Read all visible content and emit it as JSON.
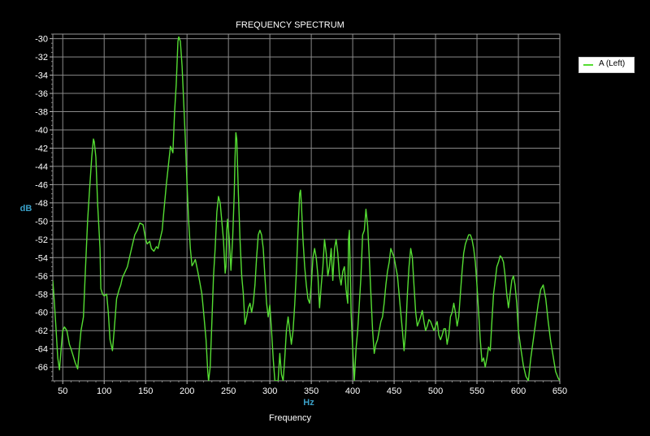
{
  "chart_data": {
    "type": "line",
    "title": "FREQUENCY SPECTRUM",
    "xlabel": "Frequency",
    "x_unit": "Hz",
    "ylabel": "dB",
    "xlim": [
      38,
      650
    ],
    "ylim": [
      -67.5,
      -29.5
    ],
    "x_ticks": [
      50,
      100,
      150,
      200,
      250,
      300,
      350,
      400,
      450,
      500,
      550,
      600,
      650
    ],
    "y_ticks": [
      -30,
      -32,
      -34,
      -36,
      -38,
      -40,
      -42,
      -44,
      -46,
      -48,
      -50,
      -52,
      -54,
      -56,
      -58,
      -60,
      -62,
      -64,
      -66
    ],
    "grid": true,
    "legend_position": "right",
    "series": [
      {
        "name": "A (Left)",
        "color": "#55dd33",
        "points": [
          [
            38,
            -56.5
          ],
          [
            40,
            -59
          ],
          [
            42,
            -62
          ],
          [
            44,
            -65
          ],
          [
            46,
            -66.3
          ],
          [
            48,
            -64
          ],
          [
            50,
            -62
          ],
          [
            52,
            -61.6
          ],
          [
            55,
            -62
          ],
          [
            58,
            -63.5
          ],
          [
            60,
            -64
          ],
          [
            62,
            -64.6
          ],
          [
            65,
            -65.5
          ],
          [
            68,
            -66.2
          ],
          [
            70,
            -64
          ],
          [
            72,
            -62
          ],
          [
            75,
            -60.5
          ],
          [
            77,
            -56
          ],
          [
            80,
            -50
          ],
          [
            82,
            -47
          ],
          [
            85,
            -43
          ],
          [
            87,
            -41
          ],
          [
            88,
            -41.3
          ],
          [
            90,
            -43
          ],
          [
            92,
            -48
          ],
          [
            95,
            -53
          ],
          [
            96,
            -57.4
          ],
          [
            98,
            -58
          ],
          [
            100,
            -58.2
          ],
          [
            103,
            -58
          ],
          [
            105,
            -60
          ],
          [
            107,
            -63
          ],
          [
            110,
            -64.2
          ],
          [
            112,
            -62
          ],
          [
            115,
            -58.5
          ],
          [
            118,
            -57.5
          ],
          [
            120,
            -57
          ],
          [
            122,
            -56.2
          ],
          [
            125,
            -55.6
          ],
          [
            128,
            -55
          ],
          [
            130,
            -54.2
          ],
          [
            133,
            -53
          ],
          [
            137,
            -51.5
          ],
          [
            140,
            -51
          ],
          [
            143,
            -50.2
          ],
          [
            147,
            -50.4
          ],
          [
            150,
            -52
          ],
          [
            152,
            -52.5
          ],
          [
            155,
            -52.2
          ],
          [
            157,
            -53
          ],
          [
            160,
            -53.3
          ],
          [
            163,
            -52.8
          ],
          [
            165,
            -53
          ],
          [
            168,
            -51.8
          ],
          [
            170,
            -51
          ],
          [
            172,
            -49
          ],
          [
            175,
            -46
          ],
          [
            178,
            -43.5
          ],
          [
            180,
            -41.8
          ],
          [
            183,
            -42.5
          ],
          [
            185,
            -38
          ],
          [
            187,
            -35
          ],
          [
            189,
            -30.3
          ],
          [
            190,
            -29.8
          ],
          [
            192,
            -30.3
          ],
          [
            194,
            -33
          ],
          [
            196,
            -37
          ],
          [
            198,
            -41
          ],
          [
            200,
            -46
          ],
          [
            202,
            -50
          ],
          [
            204,
            -53
          ],
          [
            206,
            -54.9
          ],
          [
            208,
            -54.6
          ],
          [
            210,
            -54.2
          ],
          [
            213,
            -55.5
          ],
          [
            215,
            -56.5
          ],
          [
            218,
            -58
          ],
          [
            220,
            -60
          ],
          [
            223,
            -63
          ],
          [
            225,
            -66.5
          ],
          [
            226,
            -67.5
          ],
          [
            228,
            -66
          ],
          [
            230,
            -61
          ],
          [
            232,
            -56
          ],
          [
            234,
            -53
          ],
          [
            236,
            -49
          ],
          [
            238,
            -47.3
          ],
          [
            240,
            -48
          ],
          [
            242,
            -50
          ],
          [
            244,
            -52
          ],
          [
            246,
            -55.7
          ],
          [
            247,
            -55
          ],
          [
            248,
            -51
          ],
          [
            249,
            -49.8
          ],
          [
            251,
            -52
          ],
          [
            253,
            -55.4
          ],
          [
            255,
            -52
          ],
          [
            257,
            -47
          ],
          [
            258,
            -43
          ],
          [
            259,
            -40.3
          ],
          [
            260,
            -41
          ],
          [
            261,
            -44
          ],
          [
            262,
            -47
          ],
          [
            264,
            -52
          ],
          [
            266,
            -56
          ],
          [
            268,
            -58
          ],
          [
            270,
            -61.3
          ],
          [
            272,
            -60.5
          ],
          [
            274,
            -59.5
          ],
          [
            276,
            -59
          ],
          [
            278,
            -60
          ],
          [
            280,
            -59
          ],
          [
            282,
            -57
          ],
          [
            284,
            -54
          ],
          [
            286,
            -51.5
          ],
          [
            288,
            -51
          ],
          [
            290,
            -51.5
          ],
          [
            292,
            -53
          ],
          [
            294,
            -56
          ],
          [
            296,
            -59
          ],
          [
            298,
            -60.5
          ],
          [
            300,
            -59.2
          ],
          [
            302,
            -62
          ],
          [
            304,
            -65
          ],
          [
            306,
            -67.5
          ],
          [
            308,
            -67.5
          ],
          [
            310,
            -67.5
          ],
          [
            312,
            -64.5
          ],
          [
            314,
            -66.8
          ],
          [
            316,
            -67.5
          ],
          [
            318,
            -65
          ],
          [
            320,
            -62
          ],
          [
            322,
            -60.5
          ],
          [
            324,
            -62
          ],
          [
            326,
            -63.5
          ],
          [
            328,
            -62
          ],
          [
            330,
            -59.2
          ],
          [
            332,
            -55.5
          ],
          [
            334,
            -51
          ],
          [
            336,
            -47
          ],
          [
            337,
            -46.6
          ],
          [
            338,
            -48
          ],
          [
            340,
            -52
          ],
          [
            342,
            -55
          ],
          [
            344,
            -57
          ],
          [
            346,
            -58.5
          ],
          [
            348,
            -59
          ],
          [
            350,
            -57
          ],
          [
            352,
            -54
          ],
          [
            354,
            -53
          ],
          [
            356,
            -54
          ],
          [
            358,
            -56
          ],
          [
            360,
            -59.5
          ],
          [
            362,
            -57
          ],
          [
            364,
            -55
          ],
          [
            366,
            -52
          ],
          [
            368,
            -53.5
          ],
          [
            370,
            -56
          ],
          [
            372,
            -55
          ],
          [
            374,
            -53
          ],
          [
            376,
            -56.5
          ],
          [
            378,
            -53
          ],
          [
            380,
            -52
          ],
          [
            382,
            -53.5
          ],
          [
            384,
            -56
          ],
          [
            386,
            -57
          ],
          [
            388,
            -55.5
          ],
          [
            390,
            -55
          ],
          [
            392,
            -57.5
          ],
          [
            394,
            -59
          ],
          [
            395,
            -52
          ],
          [
            396,
            -51
          ],
          [
            397,
            -55
          ],
          [
            398,
            -60
          ],
          [
            400,
            -64
          ],
          [
            402,
            -67.5
          ],
          [
            404,
            -64
          ],
          [
            406,
            -62
          ],
          [
            408,
            -59
          ],
          [
            410,
            -56
          ],
          [
            412,
            -51.5
          ],
          [
            414,
            -51
          ],
          [
            416,
            -48.7
          ],
          [
            418,
            -50.5
          ],
          [
            420,
            -54
          ],
          [
            422,
            -58
          ],
          [
            424,
            -62
          ],
          [
            426,
            -64.5
          ],
          [
            428,
            -63.5
          ],
          [
            430,
            -63
          ],
          [
            432,
            -62
          ],
          [
            434,
            -61
          ],
          [
            436,
            -60.5
          ],
          [
            438,
            -59
          ],
          [
            440,
            -57
          ],
          [
            442,
            -55.5
          ],
          [
            444,
            -54.5
          ],
          [
            446,
            -53
          ],
          [
            448,
            -53.5
          ],
          [
            450,
            -54
          ],
          [
            452,
            -55
          ],
          [
            454,
            -56
          ],
          [
            456,
            -58
          ],
          [
            458,
            -60
          ],
          [
            460,
            -62
          ],
          [
            462,
            -64.2
          ],
          [
            464,
            -62
          ],
          [
            466,
            -58
          ],
          [
            468,
            -55
          ],
          [
            470,
            -53
          ],
          [
            472,
            -54
          ],
          [
            474,
            -57
          ],
          [
            476,
            -60
          ],
          [
            478,
            -61.5
          ],
          [
            480,
            -61
          ],
          [
            482,
            -60.5
          ],
          [
            484,
            -59.8
          ],
          [
            486,
            -61
          ],
          [
            488,
            -62
          ],
          [
            490,
            -61.5
          ],
          [
            492,
            -60.8
          ],
          [
            494,
            -61
          ],
          [
            496,
            -61.5
          ],
          [
            498,
            -62
          ],
          [
            500,
            -61.5
          ],
          [
            502,
            -61
          ],
          [
            504,
            -62.5
          ],
          [
            506,
            -63
          ],
          [
            508,
            -62.5
          ],
          [
            510,
            -61.8
          ],
          [
            512,
            -61.8
          ],
          [
            514,
            -63.5
          ],
          [
            516,
            -62.5
          ],
          [
            518,
            -60.5
          ],
          [
            520,
            -60
          ],
          [
            522,
            -59
          ],
          [
            524,
            -60
          ],
          [
            526,
            -61.5
          ],
          [
            528,
            -60.5
          ],
          [
            530,
            -58
          ],
          [
            532,
            -55.5
          ],
          [
            534,
            -53.5
          ],
          [
            536,
            -52.5
          ],
          [
            538,
            -52
          ],
          [
            540,
            -51.5
          ],
          [
            542,
            -51.5
          ],
          [
            544,
            -52
          ],
          [
            546,
            -53
          ],
          [
            548,
            -54.5
          ],
          [
            550,
            -57
          ],
          [
            552,
            -60
          ],
          [
            554,
            -63
          ],
          [
            556,
            -65.4
          ],
          [
            558,
            -65
          ],
          [
            560,
            -66
          ],
          [
            562,
            -65
          ],
          [
            564,
            -63.8
          ],
          [
            566,
            -64.2
          ],
          [
            568,
            -61
          ],
          [
            570,
            -58
          ],
          [
            572,
            -56.5
          ],
          [
            574,
            -55
          ],
          [
            576,
            -54.5
          ],
          [
            578,
            -53.8
          ],
          [
            580,
            -54
          ],
          [
            582,
            -54.5
          ],
          [
            584,
            -56
          ],
          [
            586,
            -58
          ],
          [
            588,
            -59.5
          ],
          [
            590,
            -58
          ],
          [
            592,
            -56.5
          ],
          [
            594,
            -56
          ],
          [
            596,
            -57
          ],
          [
            598,
            -59
          ],
          [
            600,
            -62
          ],
          [
            603,
            -64
          ],
          [
            606,
            -65.8
          ],
          [
            609,
            -67
          ],
          [
            612,
            -67.5
          ],
          [
            615,
            -65
          ],
          [
            618,
            -63
          ],
          [
            621,
            -61
          ],
          [
            624,
            -59
          ],
          [
            627,
            -57.5
          ],
          [
            630,
            -57
          ],
          [
            633,
            -58.5
          ],
          [
            636,
            -61
          ],
          [
            639,
            -63.2
          ],
          [
            642,
            -64.8
          ],
          [
            645,
            -66.5
          ],
          [
            648,
            -67.2
          ],
          [
            650,
            -67.5
          ]
        ]
      }
    ]
  }
}
